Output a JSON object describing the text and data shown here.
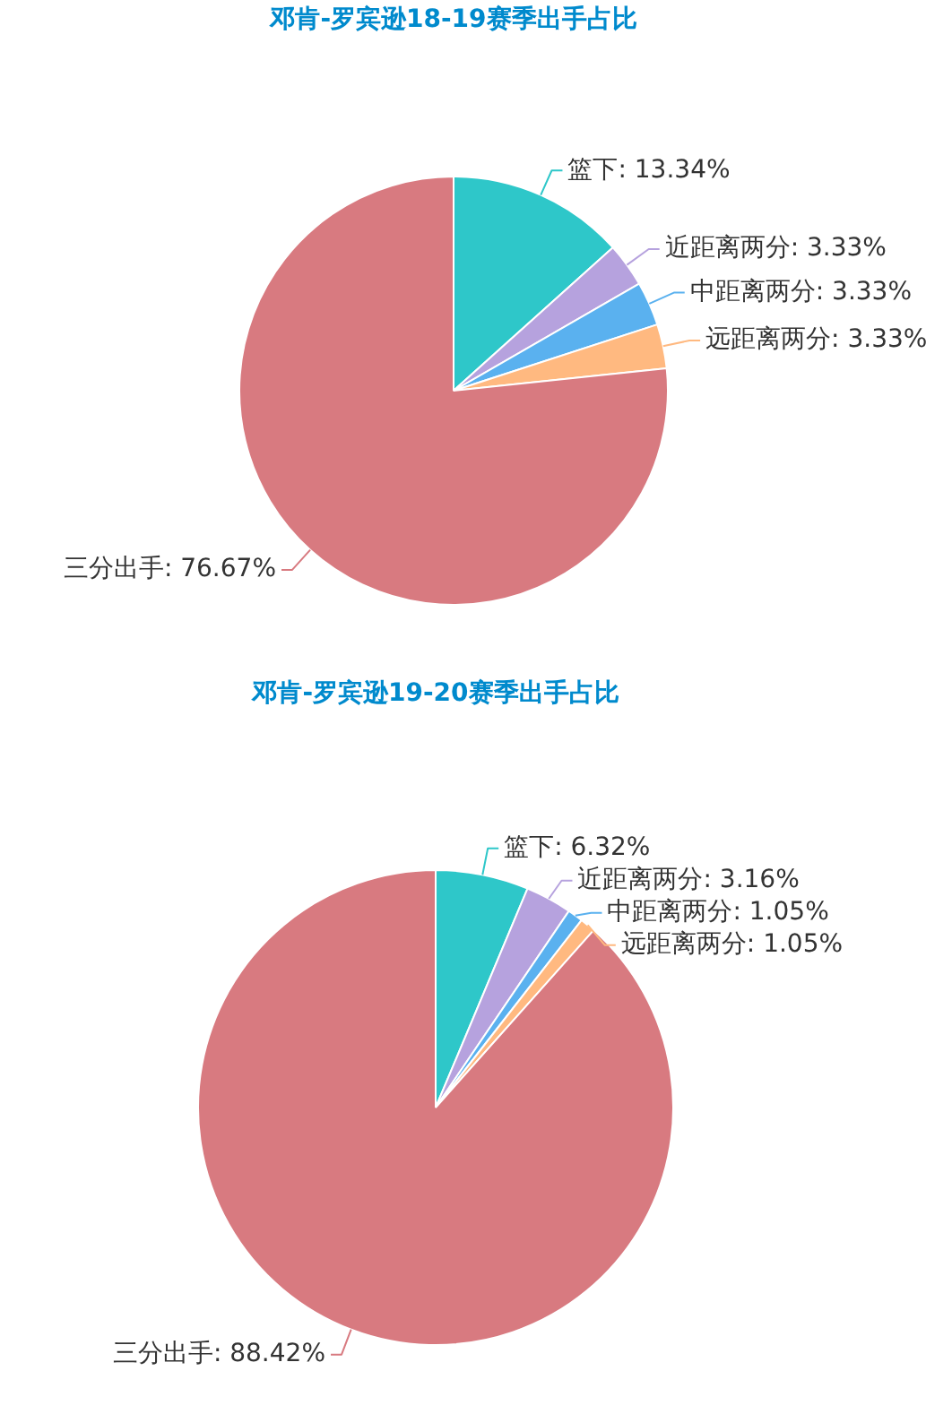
{
  "chart_data": [
    {
      "type": "pie",
      "title": "邓肯-罗宾逊18-19赛季出手占比",
      "categories": [
        "篮下",
        "近距离两分",
        "中距离两分",
        "远距离两分",
        "三分出手"
      ],
      "values": [
        13.34,
        3.33,
        3.33,
        3.33,
        76.67
      ],
      "value_labels": [
        "13.34%",
        "3.33%",
        "3.33%",
        "3.33%",
        "76.67%"
      ],
      "colors": [
        "#2ec7c9",
        "#b6a2de",
        "#5ab1ef",
        "#ffb980",
        "#d87a80"
      ]
    },
    {
      "type": "pie",
      "title": "邓肯-罗宾逊19-20赛季出手占比",
      "categories": [
        "篮下",
        "近距离两分",
        "中距离两分",
        "远距离两分",
        "三分出手"
      ],
      "values": [
        6.32,
        3.16,
        1.05,
        1.05,
        88.42
      ],
      "value_labels": [
        "6.32%",
        "3.16%",
        "1.05%",
        "1.05%",
        "88.42%"
      ],
      "colors": [
        "#2ec7c9",
        "#b6a2de",
        "#5ab1ef",
        "#ffb980",
        "#d87a80"
      ]
    }
  ]
}
